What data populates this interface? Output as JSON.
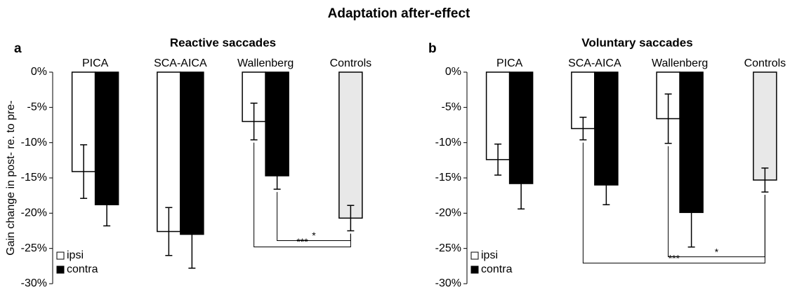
{
  "title": "Adaptation after-effect",
  "chart_data": [
    {
      "type": "bar",
      "panel": "a",
      "title": "Reactive saccades",
      "ylabel": "Gain change in post- re. to pre-",
      "categories": [
        "PICA",
        "SCA-AICA",
        "Wallenberg",
        "Controls"
      ],
      "series": [
        {
          "name": "ipsi",
          "color": "#ffffff",
          "values": [
            -14.1,
            -22.6,
            -7.0,
            null
          ],
          "errors": [
            3.8,
            3.4,
            2.6,
            null
          ]
        },
        {
          "name": "contra",
          "color": "#000000",
          "values": [
            -18.8,
            -23.0,
            -14.7,
            null
          ],
          "errors": [
            3.0,
            4.8,
            1.9,
            null
          ]
        }
      ],
      "control": {
        "category": "Controls",
        "color": "#e8e8e8",
        "value": -20.7,
        "error": 1.8
      },
      "comparisons": [
        {
          "label": "*",
          "from": "Wallenberg",
          "from_series": "contra",
          "to": "Controls"
        },
        {
          "label": "***",
          "from": "Wallenberg",
          "from_series": "ipsi",
          "to": "Controls"
        }
      ],
      "ylim": [
        -30,
        0
      ],
      "yticks": [
        {
          "value": 0,
          "label": "0%"
        },
        {
          "value": -5,
          "label": "-5%"
        },
        {
          "value": -10,
          "label": "-10%"
        },
        {
          "value": -15,
          "label": "-15%"
        },
        {
          "value": -20,
          "label": "-20%"
        },
        {
          "value": -25,
          "label": "-25%"
        },
        {
          "value": -30,
          "label": "-30%"
        }
      ],
      "legend": "lower left"
    },
    {
      "type": "bar",
      "panel": "b",
      "title": "Voluntary saccades",
      "categories": [
        "PICA",
        "SCA-AICA",
        "Wallenberg",
        "Controls"
      ],
      "series": [
        {
          "name": "ipsi",
          "color": "#ffffff",
          "values": [
            -12.4,
            -8.0,
            -6.6,
            null
          ],
          "errors": [
            2.2,
            1.6,
            3.5,
            null
          ]
        },
        {
          "name": "contra",
          "color": "#000000",
          "values": [
            -15.8,
            -16.0,
            -19.9,
            null
          ],
          "errors": [
            3.6,
            2.8,
            4.9,
            null
          ]
        }
      ],
      "control": {
        "category": "Controls",
        "color": "#e8e8e8",
        "value": -15.3,
        "error": 1.7
      },
      "comparisons": [
        {
          "label": "*",
          "from": "Wallenberg",
          "from_series": "ipsi",
          "to": "Controls"
        },
        {
          "label": "***",
          "from": "SCA-AICA",
          "from_series": "ipsi",
          "to": "Controls"
        }
      ],
      "ylim": [
        -30,
        0
      ],
      "yticks": [
        {
          "value": 0,
          "label": "0%"
        },
        {
          "value": -5,
          "label": "-5%"
        },
        {
          "value": -10,
          "label": "-10%"
        },
        {
          "value": -15,
          "label": "-15%"
        },
        {
          "value": -20,
          "label": "-20%"
        },
        {
          "value": -25,
          "label": "-25%"
        },
        {
          "value": -30,
          "label": "-30%"
        }
      ],
      "legend": "lower left"
    }
  ]
}
